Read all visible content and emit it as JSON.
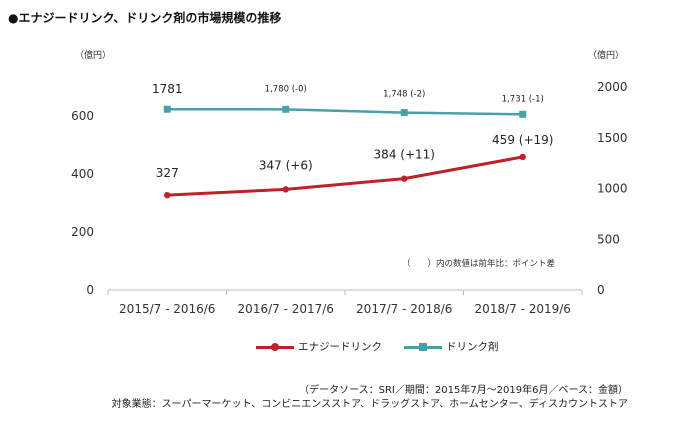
{
  "title": "●エナジードリンク、ドリンク剤の市場規模の推移",
  "chart_data": {
    "type": "line",
    "categories": [
      "2015/7 - 2016/6",
      "2016/7 - 2017/6",
      "2017/7 - 2018/6",
      "2018/7 - 2019/6"
    ],
    "left_axis": {
      "unit": "（億円）",
      "range": [
        0,
        700
      ],
      "ticks": [
        "0",
        "200",
        "400",
        "600"
      ],
      "tick_values": [
        0,
        200,
        400,
        600
      ]
    },
    "right_axis": {
      "unit": "（億円）",
      "range": [
        0,
        2000
      ],
      "ticks": [
        "0",
        "500",
        "1000",
        "1500",
        "2000"
      ],
      "tick_values": [
        0,
        500,
        1000,
        1500,
        2000
      ]
    },
    "series": [
      {
        "name": "エナジードリンク",
        "axis": "left",
        "color": "#c0202a",
        "values": [
          327,
          347,
          384,
          459
        ],
        "labels": [
          "327",
          "347 (+6)",
          "384 (+11)",
          "459 (+19)"
        ]
      },
      {
        "name": "ドリンク剤",
        "axis": "right",
        "color": "#4aa0a8",
        "values": [
          1781,
          1780,
          1748,
          1731
        ],
        "labels": [
          "1781",
          "1,780 (-0)",
          "1,748 (-2)",
          "1,731 (-1)"
        ]
      }
    ],
    "note": "（　　）内の数値は前年比：ポイント差"
  },
  "source": {
    "line1": "（データソース：SRI／期間：2015年7月～2019年6月／ベース：金額）",
    "line2": "対象業態：スーパーマーケット、コンビニエンスストア、ドラッグストア、ホームセンター、ディスカウントストア"
  }
}
